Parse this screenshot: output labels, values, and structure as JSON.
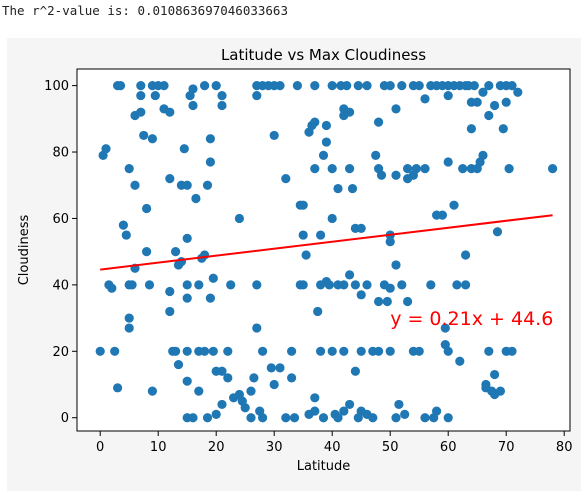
{
  "output": {
    "text": "The r^2-value is: 0.010863697046033663"
  },
  "colors": {
    "marker": "#1f77b4",
    "fit_line": "#ff0000",
    "figure_bg": "#f5f5f5",
    "axes_bg": "#ffffff"
  },
  "chart_data": {
    "type": "scatter",
    "title": "Latitude vs Max Cloudiness",
    "xlabel": "Latitude",
    "ylabel": "Cloudiness",
    "xlim": [
      -4,
      81
    ],
    "ylim": [
      -4,
      105
    ],
    "xticks": [
      0,
      10,
      20,
      30,
      40,
      50,
      60,
      70,
      80
    ],
    "yticks": [
      0,
      20,
      40,
      60,
      80,
      100
    ],
    "grid": false,
    "annotation": "y = 0.21x + 44.6",
    "regression": {
      "slope": 0.21,
      "intercept": 44.6,
      "x_range": [
        0,
        78
      ]
    },
    "points": [
      [
        0,
        20
      ],
      [
        0.5,
        79
      ],
      [
        1,
        81
      ],
      [
        1.5,
        40
      ],
      [
        2,
        39
      ],
      [
        2.5,
        20
      ],
      [
        3,
        9
      ],
      [
        3,
        100
      ],
      [
        3.5,
        100
      ],
      [
        4,
        58
      ],
      [
        4.5,
        55
      ],
      [
        5,
        75
      ],
      [
        5,
        40
      ],
      [
        5.5,
        40
      ],
      [
        5,
        30
      ],
      [
        5,
        27
      ],
      [
        6,
        45
      ],
      [
        6,
        70
      ],
      [
        6,
        91
      ],
      [
        7,
        92
      ],
      [
        7,
        100
      ],
      [
        7,
        97
      ],
      [
        7.5,
        85
      ],
      [
        8,
        63
      ],
      [
        8,
        50
      ],
      [
        8.5,
        40
      ],
      [
        9,
        84
      ],
      [
        9,
        8
      ],
      [
        9,
        100
      ],
      [
        9.5,
        97
      ],
      [
        10,
        100
      ],
      [
        11,
        100
      ],
      [
        11,
        93
      ],
      [
        12,
        92
      ],
      [
        12,
        72
      ],
      [
        12,
        38
      ],
      [
        12,
        32
      ],
      [
        12.5,
        20
      ],
      [
        13,
        50
      ],
      [
        13,
        20
      ],
      [
        13.5,
        16
      ],
      [
        13.5,
        46
      ],
      [
        14,
        47
      ],
      [
        14,
        70
      ],
      [
        14.5,
        81
      ],
      [
        15,
        70
      ],
      [
        15,
        54
      ],
      [
        15,
        40
      ],
      [
        15,
        36
      ],
      [
        15,
        20
      ],
      [
        15,
        11
      ],
      [
        15,
        0
      ],
      [
        15.5,
        97
      ],
      [
        16,
        99
      ],
      [
        16,
        94
      ],
      [
        16,
        0
      ],
      [
        16.5,
        66
      ],
      [
        17,
        40
      ],
      [
        17,
        20
      ],
      [
        17,
        8
      ],
      [
        17.5,
        48
      ],
      [
        18,
        100
      ],
      [
        18,
        49
      ],
      [
        18,
        20
      ],
      [
        18.5,
        70
      ],
      [
        18.5,
        0
      ],
      [
        19,
        84
      ],
      [
        19,
        77
      ],
      [
        19,
        36
      ],
      [
        19.5,
        42
      ],
      [
        19.5,
        20
      ],
      [
        20,
        100
      ],
      [
        20,
        14
      ],
      [
        20,
        1
      ],
      [
        21,
        94
      ],
      [
        21,
        97
      ],
      [
        21,
        14
      ],
      [
        21,
        4
      ],
      [
        22,
        20
      ],
      [
        22,
        12
      ],
      [
        22.5,
        40
      ],
      [
        23,
        6
      ],
      [
        24,
        60
      ],
      [
        24,
        7
      ],
      [
        24.5,
        5
      ],
      [
        25,
        3
      ],
      [
        26,
        0
      ],
      [
        26,
        8
      ],
      [
        26.5,
        12
      ],
      [
        27,
        100
      ],
      [
        27,
        97
      ],
      [
        27,
        40
      ],
      [
        27,
        27
      ],
      [
        27.5,
        2
      ],
      [
        28,
        100
      ],
      [
        28,
        20
      ],
      [
        28,
        0
      ],
      [
        29,
        100
      ],
      [
        29.5,
        15
      ],
      [
        30,
        100
      ],
      [
        30,
        85
      ],
      [
        30,
        10
      ],
      [
        31,
        100
      ],
      [
        31,
        15
      ],
      [
        32,
        72
      ],
      [
        32,
        0
      ],
      [
        33,
        20
      ],
      [
        33,
        12
      ],
      [
        33.5,
        0
      ],
      [
        34,
        100
      ],
      [
        34.5,
        40
      ],
      [
        34.5,
        64
      ],
      [
        35,
        64
      ],
      [
        35,
        55
      ],
      [
        35,
        40
      ],
      [
        35.5,
        49
      ],
      [
        36,
        86
      ],
      [
        36,
        1
      ],
      [
        36.5,
        88
      ],
      [
        37,
        100
      ],
      [
        37,
        89
      ],
      [
        37,
        75
      ],
      [
        37,
        6
      ],
      [
        37,
        2
      ],
      [
        37.5,
        32
      ],
      [
        38,
        55
      ],
      [
        38,
        40
      ],
      [
        38,
        20
      ],
      [
        38.5,
        79
      ],
      [
        38.5,
        0
      ],
      [
        39,
        88
      ],
      [
        39,
        83
      ],
      [
        39,
        41
      ],
      [
        39.5,
        40
      ],
      [
        40,
        100
      ],
      [
        40,
        75
      ],
      [
        40,
        60
      ],
      [
        40,
        20
      ],
      [
        40.5,
        1
      ],
      [
        41,
        69
      ],
      [
        41,
        40
      ],
      [
        41,
        0
      ],
      [
        41.5,
        100
      ],
      [
        42,
        93
      ],
      [
        42,
        91
      ],
      [
        42,
        40
      ],
      [
        42,
        20
      ],
      [
        42,
        2
      ],
      [
        42.5,
        100
      ],
      [
        43,
        92
      ],
      [
        43,
        75
      ],
      [
        43,
        43
      ],
      [
        43,
        4
      ],
      [
        43.5,
        69
      ],
      [
        44,
        57
      ],
      [
        44,
        40
      ],
      [
        44,
        14
      ],
      [
        44.5,
        100
      ],
      [
        44.5,
        0
      ],
      [
        45,
        57
      ],
      [
        45,
        37
      ],
      [
        45,
        20
      ],
      [
        45,
        2
      ],
      [
        46,
        100
      ],
      [
        46,
        40
      ],
      [
        46,
        1
      ],
      [
        47,
        20
      ],
      [
        47,
        0
      ],
      [
        47.5,
        79
      ],
      [
        48,
        89
      ],
      [
        48,
        35
      ],
      [
        48,
        20
      ],
      [
        48,
        75
      ],
      [
        48.5,
        73
      ],
      [
        49,
        100
      ],
      [
        49,
        40
      ],
      [
        49.5,
        35
      ],
      [
        50,
        100
      ],
      [
        50,
        55
      ],
      [
        50,
        53
      ],
      [
        50,
        39
      ],
      [
        50,
        20
      ],
      [
        51,
        93
      ],
      [
        51,
        73
      ],
      [
        51,
        46
      ],
      [
        51,
        0
      ],
      [
        51.5,
        4
      ],
      [
        52,
        100
      ],
      [
        52,
        40
      ],
      [
        52.5,
        1
      ],
      [
        53,
        75
      ],
      [
        53,
        72
      ],
      [
        53,
        35
      ],
      [
        54,
        100
      ],
      [
        54,
        73
      ],
      [
        54,
        20
      ],
      [
        54.5,
        75
      ],
      [
        55,
        100
      ],
      [
        55,
        20
      ],
      [
        56,
        96
      ],
      [
        56,
        75
      ],
      [
        56,
        0
      ],
      [
        57,
        100
      ],
      [
        57,
        40
      ],
      [
        57.5,
        0
      ],
      [
        58,
        61
      ],
      [
        58,
        100
      ],
      [
        58,
        2
      ],
      [
        59,
        100
      ],
      [
        59,
        61
      ],
      [
        59.5,
        27
      ],
      [
        59.5,
        22
      ],
      [
        60,
        100
      ],
      [
        60,
        97
      ],
      [
        60,
        77
      ],
      [
        60,
        20
      ],
      [
        60,
        0
      ],
      [
        61,
        100
      ],
      [
        61,
        64
      ],
      [
        61.5,
        40
      ],
      [
        62,
        100
      ],
      [
        62,
        17
      ],
      [
        62.5,
        75
      ],
      [
        63,
        100
      ],
      [
        63,
        49
      ],
      [
        63,
        40
      ],
      [
        63.5,
        100
      ],
      [
        64,
        95
      ],
      [
        64,
        87
      ],
      [
        64,
        75
      ],
      [
        64.5,
        100
      ],
      [
        65,
        95
      ],
      [
        65,
        75
      ],
      [
        65.5,
        77
      ],
      [
        66,
        79
      ],
      [
        66,
        98
      ],
      [
        66.5,
        10
      ],
      [
        66.5,
        9
      ],
      [
        67,
        100
      ],
      [
        67,
        91
      ],
      [
        67,
        20
      ],
      [
        67.5,
        8
      ],
      [
        68,
        94
      ],
      [
        68,
        13
      ],
      [
        68,
        7
      ],
      [
        68.5,
        56
      ],
      [
        69,
        100
      ],
      [
        69,
        8
      ],
      [
        69.5,
        87
      ],
      [
        70,
        20
      ],
      [
        70,
        100
      ],
      [
        70,
        95
      ],
      [
        70.5,
        75
      ],
      [
        71,
        100
      ],
      [
        71,
        20
      ],
      [
        72,
        98
      ],
      [
        78,
        75
      ]
    ]
  }
}
